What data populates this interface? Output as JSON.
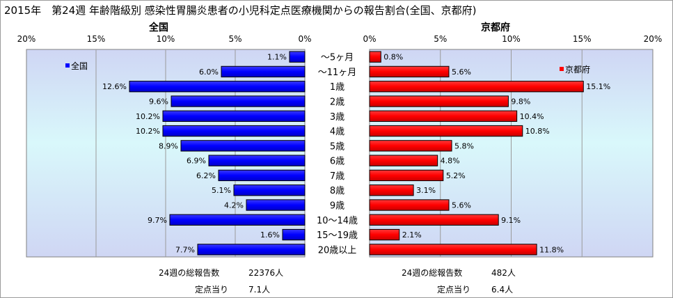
{
  "title": "2015年　第24週 年齢階級別 感染性胃腸炎患者の小児科定点医療機関からの報告割合(全国、京都府)",
  "chart_data": [
    {
      "type": "bar",
      "orientation": "horizontal",
      "direction": "right-to-left",
      "panel_title": "全国",
      "xlim": [
        0,
        20
      ],
      "x_ticks": [
        "20%",
        "15%",
        "10%",
        "5%",
        "0%"
      ],
      "grid": true,
      "legend": "top-left",
      "categories": [
        "～5ヶ月",
        "～11ヶ月",
        "1歳",
        "2歳",
        "3歳",
        "4歳",
        "5歳",
        "6歳",
        "7歳",
        "8歳",
        "9歳",
        "10～14歳",
        "15～19歳",
        "20歳以上"
      ],
      "series": [
        {
          "name": "全国",
          "color": "#0000ff",
          "values": [
            1.1,
            6.0,
            12.6,
            9.6,
            10.2,
            10.2,
            8.9,
            6.9,
            6.2,
            5.1,
            4.2,
            9.7,
            1.6,
            7.7
          ],
          "labels": [
            "1.1%",
            "6.0%",
            "12.6%",
            "9.6%",
            "10.2%",
            "10.2%",
            "8.9%",
            "6.9%",
            "6.2%",
            "5.1%",
            "4.2%",
            "9.7%",
            "1.6%",
            "7.7%"
          ]
        }
      ]
    },
    {
      "type": "bar",
      "orientation": "horizontal",
      "direction": "left-to-right",
      "panel_title": "京都府",
      "xlim": [
        0,
        20
      ],
      "x_ticks": [
        "0%",
        "5%",
        "10%",
        "15%",
        "20%"
      ],
      "grid": true,
      "legend": "top-right",
      "categories": [
        "～5ヶ月",
        "～11ヶ月",
        "1歳",
        "2歳",
        "3歳",
        "4歳",
        "5歳",
        "6歳",
        "7歳",
        "8歳",
        "9歳",
        "10～14歳",
        "15～19歳",
        "20歳以上"
      ],
      "series": [
        {
          "name": "京都府",
          "color": "#ff0000",
          "values": [
            0.8,
            5.6,
            15.1,
            9.8,
            10.4,
            10.8,
            5.8,
            4.8,
            5.2,
            3.1,
            5.6,
            9.1,
            2.1,
            11.8
          ],
          "labels": [
            "0.8%",
            "5.6%",
            "15.1%",
            "9.8%",
            "10.4%",
            "10.8%",
            "5.8%",
            "4.8%",
            "5.2%",
            "3.1%",
            "5.6%",
            "9.1%",
            "2.1%",
            "11.8%"
          ]
        }
      ]
    }
  ],
  "annotations": {
    "national_total_label": "24週の総報告数",
    "national_total_value": "22376人",
    "national_per_site_label": "定点当り",
    "national_per_site_value": "7.1人",
    "kyoto_total_label": "24週の総報告数",
    "kyoto_total_value": "482人",
    "kyoto_per_site_label": "定点当り",
    "kyoto_per_site_value": "6.4人"
  }
}
